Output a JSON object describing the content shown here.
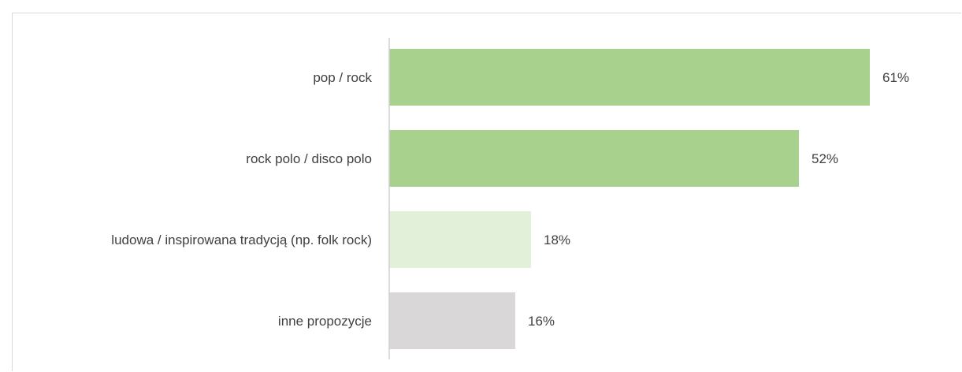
{
  "chart_data": {
    "type": "bar",
    "orientation": "horizontal",
    "categories": [
      "pop / rock",
      "rock polo / disco polo",
      "ludowa / inspirowana tradycją (np. folk rock)",
      "inne propozycje"
    ],
    "values": [
      61,
      52,
      18,
      16
    ],
    "value_labels": [
      "61%",
      "52%",
      "18%",
      "16%"
    ],
    "colors": [
      "#a9d18e",
      "#a9d18e",
      "#e2efd9",
      "#d9d7d8"
    ],
    "xlim": [
      0,
      70
    ],
    "grid": false,
    "legend": "none"
  }
}
